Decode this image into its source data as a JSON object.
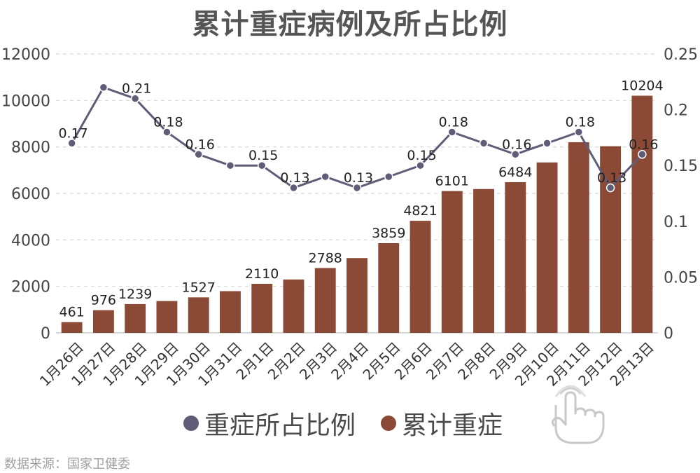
{
  "chart_data": {
    "type": "bar",
    "title": "累计重症病例及所占比例",
    "categories": [
      "1月26日",
      "1月27日",
      "1月28日",
      "1月29日",
      "1月30日",
      "1月31日",
      "2月1日",
      "2月2日",
      "2月3日",
      "2月4日",
      "2月5日",
      "2月6日",
      "2月7日",
      "2月8日",
      "2月9日",
      "2月10日",
      "2月11日",
      "2月12日",
      "2月13日"
    ],
    "series": [
      {
        "name": "累计重症",
        "type": "bar",
        "axis": "left",
        "color": "#8b4a36",
        "values": [
          461,
          976,
          1239,
          1370,
          1527,
          1795,
          2110,
          2296,
          2788,
          3219,
          3859,
          4821,
          6101,
          6188,
          6484,
          7333,
          8204,
          8030,
          10204
        ],
        "labels": [
          "461",
          "976",
          "1239",
          "",
          "1527",
          "",
          "2110",
          "",
          "2788",
          "",
          "3859",
          "4821",
          "6101",
          "",
          "6484",
          "",
          "",
          "",
          "10204"
        ]
      },
      {
        "name": "重症所占比例",
        "type": "line",
        "axis": "right",
        "color": "#5f5c78",
        "values": [
          0.17,
          0.22,
          0.21,
          0.18,
          0.16,
          0.15,
          0.15,
          0.13,
          0.14,
          0.13,
          0.14,
          0.15,
          0.18,
          0.17,
          0.16,
          0.17,
          0.18,
          0.13,
          0.16
        ],
        "labels": [
          "0.17",
          "",
          "0.21",
          "0.18",
          "0.16",
          "",
          "0.15",
          "0.13",
          "",
          "0.13",
          "",
          "0.15",
          "0.18",
          "",
          "0.16",
          "",
          "0.18",
          "0.13",
          "0.16"
        ]
      }
    ],
    "y_left": {
      "ylim": [
        0,
        12000
      ],
      "ticks": [
        0,
        2000,
        4000,
        6000,
        8000,
        10000,
        12000
      ]
    },
    "y_right": {
      "ylim": [
        0,
        0.25
      ],
      "ticks": [
        "0",
        "0.05",
        "0.1",
        "0.15",
        "0.2",
        "0.25"
      ]
    },
    "grid": "horizontal dashed",
    "legend_position": "bottom"
  },
  "legend": {
    "line_label": "重症所占比例",
    "bar_label": "累计重症"
  },
  "source": "数据来源：国家卫健委"
}
